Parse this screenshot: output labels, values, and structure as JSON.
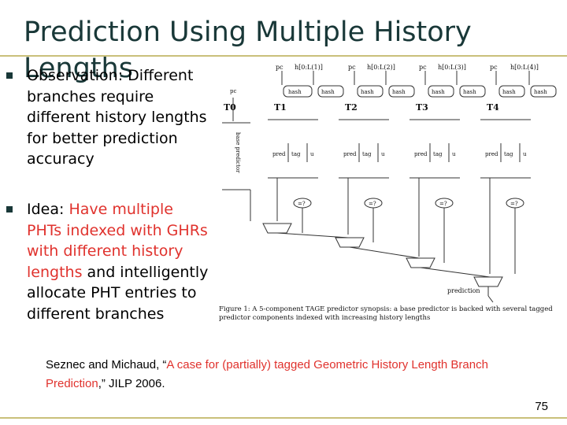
{
  "slide": {
    "title": "Prediction Using Multiple History Lengths",
    "bullets": [
      {
        "text": "Observation: Different branches require different history lengths for better prediction accuracy"
      },
      {
        "prefix": "Idea: ",
        "hl1": "Have multiple PHTs indexed with GHRs with different history lengths",
        "mid": " and intelligently allocate PHT entries to different branches"
      }
    ],
    "citation": {
      "authors": "Seznec and Michaud, “",
      "title": "A case for (partially) tagged Geometric History Length Branch Prediction",
      "venue": ",” JILP 2006."
    },
    "page_number": "75",
    "colors": {
      "title": "#193838",
      "highlight": "#e0322d",
      "rule": "#c9c07a"
    }
  },
  "figure": {
    "top_labels": [
      "pc",
      "h[0:L(1)]",
      "pc",
      "h[0:L(2)]",
      "pc",
      "h[0:L(3)]",
      "pc",
      "h[0:L(4)]"
    ],
    "hash_label": "hash",
    "table_labels": [
      "T0",
      "T1",
      "T2",
      "T3",
      "T4"
    ],
    "base_label": "base predictor",
    "pc_small": "pc",
    "fields": [
      "pred",
      "tag",
      "u"
    ],
    "compare": "=?",
    "prediction": "prediction",
    "caption": "Figure 1: A 5-component TAGE predictor synopsis: a base predictor is backed with several tagged predictor components indexed with increasing history lengths"
  }
}
